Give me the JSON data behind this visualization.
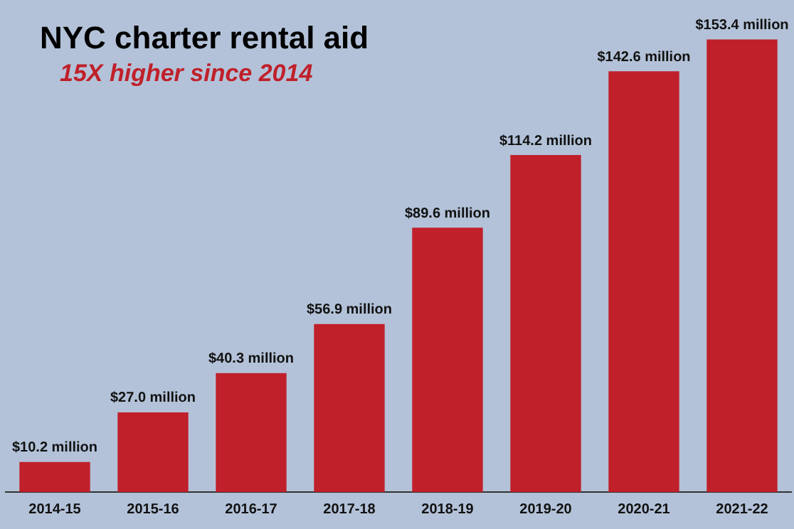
{
  "chart_data": {
    "type": "bar",
    "title": "NYC charter rental aid",
    "subtitle": "15X higher since 2014",
    "categories": [
      "2014-15",
      "2015-16",
      "2016-17",
      "2017-18",
      "2018-19",
      "2019-20",
      "2020-21",
      "2021-22"
    ],
    "values": [
      10.2,
      27.0,
      40.3,
      56.9,
      89.6,
      114.2,
      142.6,
      153.4
    ],
    "value_labels": [
      "$10.2 million",
      "$27.0 million",
      "$40.3 million",
      "$56.9 million",
      "$89.6 million",
      "$114.2 million",
      "$142.6 million",
      "$153.4 million"
    ],
    "color": "#c0202a",
    "grid": false,
    "legend": false,
    "tick_labels": "x"
  }
}
